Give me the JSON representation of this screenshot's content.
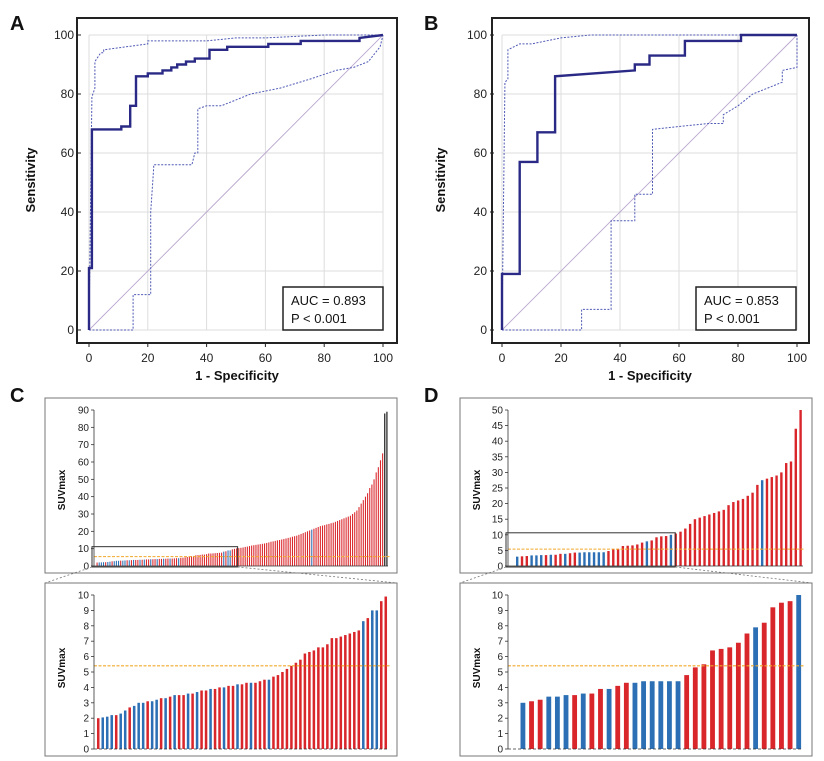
{
  "chart_data": [
    {
      "panel": "A",
      "type": "line",
      "xlabel": "1 - Specificity",
      "ylabel": "Sensitivity",
      "xlim": [
        0,
        100
      ],
      "ylim": [
        0,
        100
      ],
      "ticks": [
        0,
        20,
        40,
        60,
        80,
        100
      ],
      "annotations": [
        "AUC = 0.893",
        "P < 0.001"
      ],
      "series": [
        {
          "name": "ROC",
          "x": [
            0,
            0,
            1,
            1,
            3,
            3,
            11,
            11,
            14,
            14,
            16,
            16,
            18,
            18,
            20,
            20,
            22,
            25,
            25,
            28,
            28,
            30,
            30,
            33,
            33,
            36,
            36,
            41,
            41,
            47,
            47,
            61,
            61,
            72,
            72,
            80,
            80,
            92,
            92,
            100
          ],
          "y": [
            0,
            21,
            21,
            68,
            68,
            68,
            68,
            69,
            69,
            76,
            76,
            86,
            86,
            86,
            86,
            87,
            87,
            87,
            88,
            88,
            89,
            89,
            90,
            90,
            91,
            91,
            92,
            92,
            95,
            95,
            96,
            96,
            97,
            97,
            98,
            98,
            98,
            98,
            99,
            100
          ]
        },
        {
          "name": "95% CI upper",
          "x": [
            0,
            1,
            1,
            2,
            2,
            4,
            5,
            5,
            20,
            20,
            40,
            50,
            60,
            80,
            100
          ],
          "y": [
            0,
            79,
            79,
            82,
            91,
            94,
            94,
            95,
            97,
            98,
            98,
            99,
            99,
            100,
            100
          ]
        },
        {
          "name": "95% CI lower",
          "x": [
            0,
            15,
            15,
            21,
            21,
            22,
            22,
            35,
            36,
            37,
            37,
            40,
            45,
            55,
            65,
            75,
            84,
            90,
            95,
            99,
            100
          ],
          "y": [
            0,
            0,
            12,
            12,
            40,
            55,
            56,
            56,
            60,
            60,
            75,
            76,
            76,
            80,
            82,
            85,
            88,
            89,
            91,
            96,
            100
          ]
        },
        {
          "name": "reference",
          "x": [
            0,
            100
          ],
          "y": [
            0,
            100
          ]
        }
      ]
    },
    {
      "panel": "B",
      "type": "line",
      "xlabel": "1 - Specificity",
      "ylabel": "Sensitivity",
      "xlim": [
        0,
        100
      ],
      "ylim": [
        0,
        100
      ],
      "ticks": [
        0,
        20,
        40,
        60,
        80,
        100
      ],
      "annotations": [
        "AUC = 0.853",
        "P < 0.001"
      ],
      "series": [
        {
          "name": "ROC",
          "x": [
            0,
            0,
            6,
            6,
            12,
            12,
            18,
            18,
            45,
            45,
            50,
            50,
            62,
            62,
            81,
            81,
            100
          ],
          "y": [
            0,
            19,
            19,
            57,
            57,
            67,
            67,
            86,
            88,
            90,
            90,
            93,
            93,
            98,
            98,
            100,
            100
          ]
        },
        {
          "name": "95% CI upper",
          "x": [
            0,
            1,
            1,
            2,
            2,
            6,
            10,
            15,
            20,
            30,
            45,
            62,
            100
          ],
          "y": [
            0,
            83,
            84,
            85,
            95,
            97,
            97,
            98,
            99,
            100,
            100,
            100,
            100
          ]
        },
        {
          "name": "95% CI lower",
          "x": [
            0,
            27,
            27,
            37,
            37,
            45,
            45,
            51,
            51,
            60,
            70,
            75,
            75,
            80,
            85,
            95,
            95,
            100,
            100
          ],
          "y": [
            0,
            0,
            7,
            7,
            37,
            37,
            46,
            46,
            68,
            69,
            70,
            70,
            73,
            76,
            80,
            84,
            88,
            89,
            100
          ]
        },
        {
          "name": "reference",
          "x": [
            0,
            100
          ],
          "y": [
            0,
            100
          ]
        }
      ]
    },
    {
      "panel": "C",
      "type": "bar",
      "ylabel": "SUVmax",
      "ylim": [
        0,
        90
      ],
      "yticks": [
        0,
        10,
        20,
        30,
        40,
        50,
        60,
        70,
        80,
        90
      ],
      "cutoff": 5.4,
      "colors": {
        "red": "#d9262b",
        "blue": "#2c6fb4",
        "cutoff": "#f2a82a"
      },
      "values": [
        2.0,
        2.05,
        2.1,
        2.2,
        2.2,
        2.3,
        2.5,
        2.7,
        2.8,
        3.0,
        3.0,
        3.1,
        3.1,
        3.2,
        3.3,
        3.3,
        3.4,
        3.5,
        3.5,
        3.5,
        3.6,
        3.6,
        3.7,
        3.8,
        3.8,
        3.9,
        3.9,
        4.0,
        4.0,
        4.1,
        4.1,
        4.2,
        4.2,
        4.3,
        4.3,
        4.3,
        4.4,
        4.5,
        4.5,
        4.7,
        4.8,
        5.0,
        5.2,
        5.4,
        5.6,
        5.8,
        6.2,
        6.3,
        6.4,
        6.6,
        6.6,
        6.8,
        7.2,
        7.2,
        7.3,
        7.4,
        7.5,
        7.6,
        7.7,
        8.3,
        8.5,
        9.0,
        9.0,
        9.6,
        9.9,
        10.2,
        10.3,
        10.5,
        10.7,
        11.0,
        11.2,
        11.5,
        11.8,
        12.0,
        12.2,
        12.4,
        12.6,
        12.8,
        13.0,
        13.3,
        13.6,
        14.0,
        14.2,
        14.5,
        14.8,
        15.0,
        15.3,
        15.6,
        15.9,
        16.2,
        16.5,
        16.9,
        17.2,
        17.5,
        18.0,
        18.5,
        19.0,
        19.5,
        20.0,
        20.5,
        21.0,
        21.5,
        22.0,
        22.5,
        23.0,
        23.3,
        23.6,
        24.0,
        24.3,
        24.7,
        25.0,
        25.5,
        26.0,
        26.5,
        27.0,
        27.5,
        28.0,
        28.5,
        29.0,
        30.0,
        31.0,
        32.0,
        34.0,
        36.0,
        38.0,
        40.0,
        42.0,
        45.0,
        47.0,
        50.0,
        54.0,
        57.0,
        61.0,
        65.0,
        88.0,
        89.0
      ],
      "groups": [
        "red",
        "blue",
        "blue",
        "blue",
        "red",
        "blue",
        "blue",
        "red",
        "blue",
        "blue",
        "blue",
        "red",
        "blue",
        "blue",
        "red",
        "blue",
        "red",
        "blue",
        "red",
        "red",
        "blue",
        "red",
        "blue",
        "red",
        "red",
        "blue",
        "red",
        "red",
        "blue",
        "red",
        "red",
        "blue",
        "red",
        "red",
        "blue",
        "red",
        "red",
        "red",
        "blue",
        "red",
        "red",
        "red",
        "red",
        "red",
        "red",
        "red",
        "red",
        "red",
        "red",
        "red",
        "red",
        "red",
        "red",
        "red",
        "red",
        "red",
        "red",
        "red",
        "red",
        "blue",
        "red",
        "blue",
        "blue",
        "red",
        "red",
        "red",
        "red",
        "red",
        "red",
        "red",
        "red",
        "red",
        "red",
        "red",
        "red",
        "red",
        "red",
        "red",
        "red",
        "red",
        "red",
        "red",
        "red",
        "red",
        "red",
        "red",
        "red",
        "red",
        "red",
        "red",
        "red",
        "red",
        "red",
        "red",
        "red",
        "red",
        "red",
        "red",
        "red",
        "red",
        "blue",
        "red",
        "red",
        "red",
        "red",
        "red",
        "red",
        "red",
        "red",
        "red",
        "red",
        "red",
        "red",
        "red",
        "red",
        "red",
        "red",
        "red",
        "red",
        "red",
        "red",
        "red",
        "red",
        "red",
        "red",
        "red",
        "red",
        "red",
        "red",
        "red",
        "red",
        "red",
        "red",
        "red"
      ],
      "inset": {
        "ylim": [
          0,
          10
        ],
        "yticks": [
          0,
          1,
          2,
          3,
          4,
          5,
          6,
          7,
          8,
          9,
          10
        ],
        "count": 65
      }
    },
    {
      "panel": "D",
      "type": "bar",
      "ylabel": "SUVmax",
      "ylim": [
        0,
        50
      ],
      "yticks": [
        0,
        5,
        10,
        15,
        20,
        25,
        30,
        35,
        40,
        45,
        50
      ],
      "cutoff": 5.4,
      "colors": {
        "red": "#d9262b",
        "blue": "#2c6fb4",
        "cutoff": "#f2a82a"
      },
      "values": [
        0.0,
        3.0,
        3.1,
        3.2,
        3.4,
        3.4,
        3.5,
        3.5,
        3.6,
        3.6,
        3.9,
        3.9,
        4.1,
        4.3,
        4.3,
        4.4,
        4.4,
        4.4,
        4.4,
        4.4,
        4.8,
        5.3,
        5.5,
        6.4,
        6.5,
        6.6,
        6.9,
        7.5,
        7.9,
        8.2,
        9.2,
        9.5,
        9.6,
        10.0,
        10.4,
        11.0,
        12.0,
        13.5,
        15.0,
        15.5,
        16.0,
        16.5,
        17.0,
        17.5,
        18.0,
        19.5,
        20.5,
        21.0,
        21.5,
        22.5,
        23.5,
        26.0,
        27.5,
        28.0,
        28.5,
        29.0,
        30.0,
        33.0,
        33.5,
        44.0,
        50.0
      ],
      "groups": [
        "none",
        "blue",
        "red",
        "red",
        "blue",
        "blue",
        "blue",
        "red",
        "blue",
        "red",
        "red",
        "blue",
        "red",
        "red",
        "blue",
        "blue",
        "blue",
        "blue",
        "blue",
        "blue",
        "red",
        "red",
        "red",
        "red",
        "red",
        "red",
        "red",
        "red",
        "blue",
        "red",
        "red",
        "red",
        "red",
        "blue",
        "red",
        "red",
        "red",
        "red",
        "red",
        "red",
        "red",
        "red",
        "red",
        "red",
        "red",
        "red",
        "red",
        "red",
        "red",
        "red",
        "red",
        "red",
        "blue",
        "red",
        "red",
        "red",
        "red",
        "red",
        "red",
        "red",
        "red"
      ],
      "inset": {
        "ylim": [
          0,
          10
        ],
        "yticks": [
          0,
          1,
          2,
          3,
          4,
          5,
          6,
          7,
          8,
          9,
          10
        ],
        "count": 34
      }
    }
  ]
}
